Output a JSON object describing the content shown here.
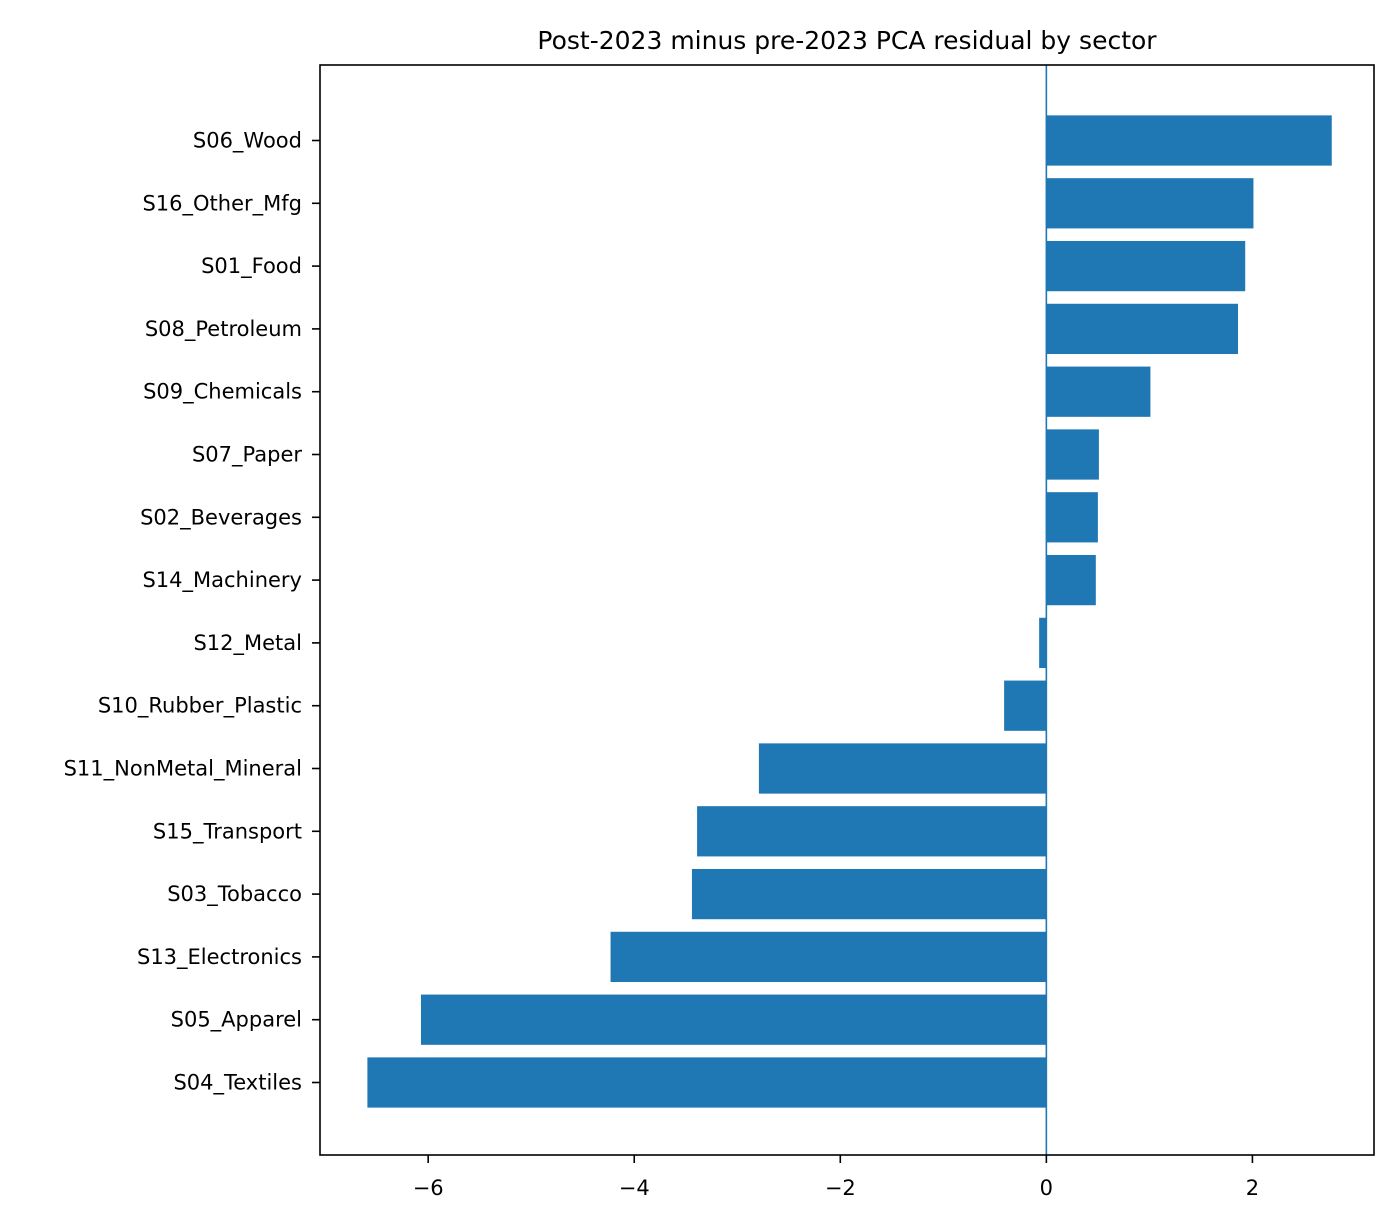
{
  "chart_data": {
    "type": "bar",
    "orientation": "horizontal",
    "title": "Post-2023 minus pre-2023 PCA residual by sector",
    "xlabel": "",
    "ylabel": "",
    "categories": [
      "S06_Wood",
      "S16_Other_Mfg",
      "S01_Food",
      "S08_Petroleum",
      "S09_Chemicals",
      "S07_Paper",
      "S02_Beverages",
      "S14_Machinery",
      "S12_Metal",
      "S10_Rubber_Plastic",
      "S11_NonMetal_Mineral",
      "S15_Transport",
      "S03_Tobacco",
      "S13_Electronics",
      "S05_Apparel",
      "S04_Textiles"
    ],
    "values": [
      2.77,
      2.01,
      1.93,
      1.86,
      1.01,
      0.51,
      0.5,
      0.48,
      -0.07,
      -0.41,
      -2.79,
      -3.39,
      -3.44,
      -4.23,
      -6.07,
      -6.59
    ],
    "xticks": [
      -6,
      -4,
      -2,
      0,
      2
    ],
    "xtick_labels": [
      "−6",
      "−4",
      "−2",
      "0",
      "2"
    ],
    "xlim": [
      -7.05,
      3.18
    ],
    "zero_line": true,
    "grid": false,
    "legend": "none",
    "bar_color": "#1f77b4",
    "zero_line_color": "#1f77b4"
  }
}
